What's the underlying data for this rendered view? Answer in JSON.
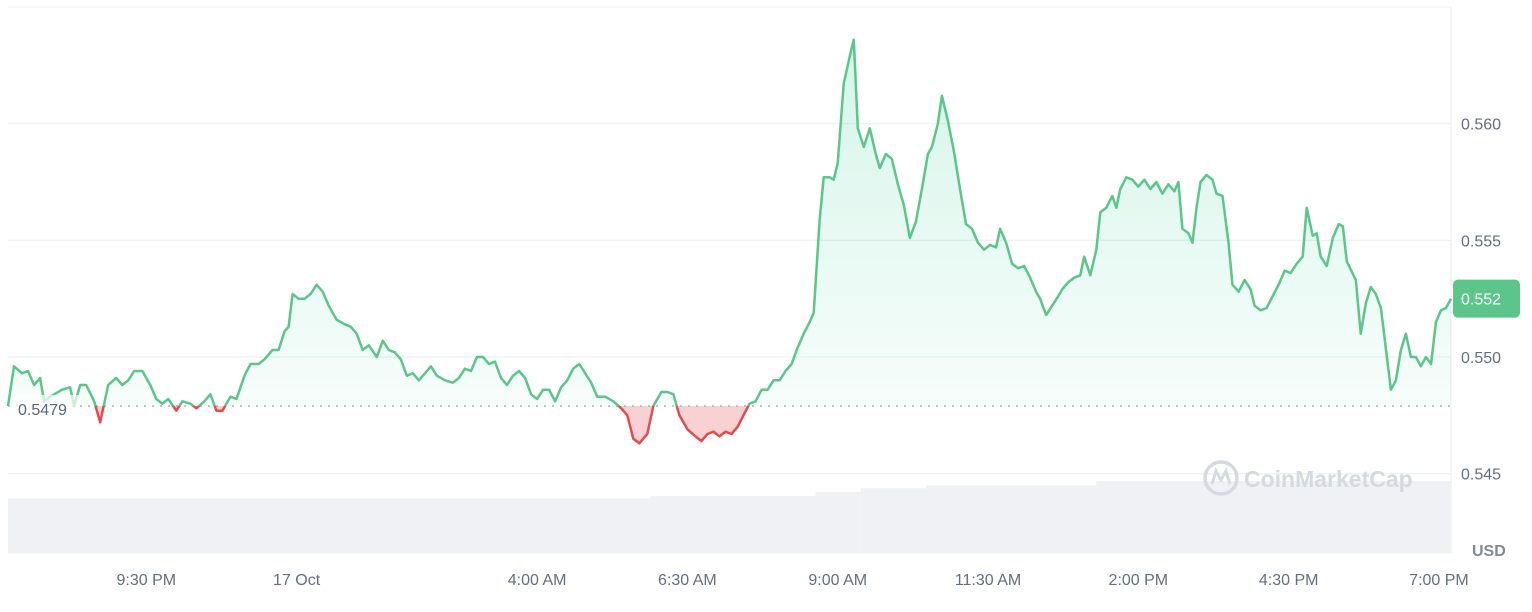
{
  "chart_data": {
    "type": "line",
    "quote_currency": "USD",
    "baseline": {
      "value": 0.5479,
      "label": "0.5479"
    },
    "current_price": {
      "value": 0.5525,
      "label": "0.552"
    },
    "watermark": "CoinMarketCap",
    "ylim": [
      0.5416,
      0.565
    ],
    "xlim": [
      "10-16T19:12",
      "10-17T19:12"
    ],
    "grid": true,
    "yticks": [
      {
        "value": 0.56,
        "label": "0.560"
      },
      {
        "value": 0.555,
        "label": "0.555"
      },
      {
        "value": 0.55,
        "label": "0.550"
      },
      {
        "value": 0.545,
        "label": "0.545"
      }
    ],
    "xticks": [
      {
        "t": "10-16T21:30",
        "label": "9:30 PM"
      },
      {
        "t": "10-17T00:00",
        "label": "17 Oct"
      },
      {
        "t": "10-17T04:00",
        "label": "4:00 AM"
      },
      {
        "t": "10-17T06:30",
        "label": "6:30 AM"
      },
      {
        "t": "10-17T09:00",
        "label": "9:00 AM"
      },
      {
        "t": "10-17T11:30",
        "label": "11:30 AM"
      },
      {
        "t": "10-17T14:00",
        "label": "2:00 PM"
      },
      {
        "t": "10-17T16:30",
        "label": "4:30 PM"
      },
      {
        "t": "10-17T19:00",
        "label": "7:00 PM"
      }
    ],
    "colors": {
      "up": "#16c784",
      "line_up": "#5bc58a",
      "down": "#e24c4c",
      "volume": "#eff1f5",
      "price_tag": "#5bc58a",
      "grid": "#eff2f5"
    },
    "volume_relative": [
      {
        "from": "10-16T19:12",
        "to": "10-17T05:53",
        "level": 0.76
      },
      {
        "from": "10-17T05:53",
        "to": "10-17T08:38",
        "level": 0.79
      },
      {
        "from": "10-17T08:38",
        "to": "10-17T09:23",
        "level": 0.85
      },
      {
        "from": "10-17T09:23",
        "to": "10-17T10:28",
        "level": 0.9
      },
      {
        "from": "10-17T10:28",
        "to": "10-17T13:18",
        "level": 0.94
      },
      {
        "from": "10-17T13:18",
        "to": "10-17T19:12",
        "level": 1.0
      }
    ],
    "points": [
      [
        "10-16T19:12",
        0.5479
      ],
      [
        "10-16T19:18",
        0.5496
      ],
      [
        "10-16T19:26",
        0.5493
      ],
      [
        "10-16T19:32",
        0.5494
      ],
      [
        "10-16T19:38",
        0.5488
      ],
      [
        "10-16T19:44",
        0.5491
      ],
      [
        "10-16T19:48",
        0.5481
      ],
      [
        "10-16T19:54",
        0.5483
      ],
      [
        "10-16T20:06",
        0.5486
      ],
      [
        "10-16T20:14",
        0.5487
      ],
      [
        "10-16T20:18",
        0.5479
      ],
      [
        "10-16T20:24",
        0.5488
      ],
      [
        "10-16T20:30",
        0.5488
      ],
      [
        "10-16T20:38",
        0.5481
      ],
      [
        "10-16T20:44",
        0.5472
      ],
      [
        "10-16T20:52",
        0.5488
      ],
      [
        "10-16T21:00",
        0.5491
      ],
      [
        "10-16T21:06",
        0.5488
      ],
      [
        "10-16T21:12",
        0.549
      ],
      [
        "10-16T21:18",
        0.5494
      ],
      [
        "10-16T21:26",
        0.5494
      ],
      [
        "10-16T21:34",
        0.5488
      ],
      [
        "10-16T21:40",
        0.5482
      ],
      [
        "10-16T21:46",
        0.548
      ],
      [
        "10-16T21:52",
        0.5482
      ],
      [
        "10-16T22:00",
        0.5477
      ],
      [
        "10-16T22:06",
        0.5481
      ],
      [
        "10-16T22:14",
        0.548
      ],
      [
        "10-16T22:20",
        0.5478
      ],
      [
        "10-16T22:28",
        0.5481
      ],
      [
        "10-16T22:34",
        0.5484
      ],
      [
        "10-16T22:40",
        0.5477
      ],
      [
        "10-16T22:46",
        0.5477
      ],
      [
        "10-16T22:54",
        0.5483
      ],
      [
        "10-16T23:00",
        0.5482
      ],
      [
        "10-16T23:08",
        0.5492
      ],
      [
        "10-16T23:14",
        0.5497
      ],
      [
        "10-16T23:22",
        0.5497
      ],
      [
        "10-16T23:28",
        0.5499
      ],
      [
        "10-16T23:36",
        0.5503
      ],
      [
        "10-16T23:42",
        0.5503
      ],
      [
        "10-16T23:48",
        0.5511
      ],
      [
        "10-16T23:52",
        0.5513
      ],
      [
        "10-16T23:56",
        0.5527
      ],
      [
        "10-17T00:02",
        0.5525
      ],
      [
        "10-17T00:08",
        0.5525
      ],
      [
        "10-17T00:14",
        0.5527
      ],
      [
        "10-17T00:20",
        0.5531
      ],
      [
        "10-17T00:26",
        0.5528
      ],
      [
        "10-17T00:32",
        0.5522
      ],
      [
        "10-17T00:40",
        0.5516
      ],
      [
        "10-17T00:48",
        0.5514
      ],
      [
        "10-17T00:54",
        0.5513
      ],
      [
        "10-17T01:00",
        0.551
      ],
      [
        "10-17T01:06",
        0.5503
      ],
      [
        "10-17T01:12",
        0.5505
      ],
      [
        "10-17T01:20",
        0.55
      ],
      [
        "10-17T01:26",
        0.5507
      ],
      [
        "10-17T01:32",
        0.5503
      ],
      [
        "10-17T01:38",
        0.5502
      ],
      [
        "10-17T01:44",
        0.5499
      ],
      [
        "10-17T01:50",
        0.5492
      ],
      [
        "10-17T01:56",
        0.5493
      ],
      [
        "10-17T02:02",
        0.549
      ],
      [
        "10-17T02:08",
        0.5493
      ],
      [
        "10-17T02:14",
        0.5496
      ],
      [
        "10-17T02:20",
        0.5492
      ],
      [
        "10-17T02:28",
        0.549
      ],
      [
        "10-17T02:36",
        0.5489
      ],
      [
        "10-17T02:42",
        0.5491
      ],
      [
        "10-17T02:48",
        0.5495
      ],
      [
        "10-17T02:54",
        0.5494
      ],
      [
        "10-17T03:00",
        0.55
      ],
      [
        "10-17T03:06",
        0.55
      ],
      [
        "10-17T03:12",
        0.5497
      ],
      [
        "10-17T03:18",
        0.5498
      ],
      [
        "10-17T03:24",
        0.5491
      ],
      [
        "10-17T03:30",
        0.5488
      ],
      [
        "10-17T03:36",
        0.5492
      ],
      [
        "10-17T03:42",
        0.5494
      ],
      [
        "10-17T03:48",
        0.5491
      ],
      [
        "10-17T03:54",
        0.5484
      ],
      [
        "10-17T04:00",
        0.5482
      ],
      [
        "10-17T04:06",
        0.5486
      ],
      [
        "10-17T04:12",
        0.5486
      ],
      [
        "10-17T04:18",
        0.5481
      ],
      [
        "10-17T04:24",
        0.5487
      ],
      [
        "10-17T04:30",
        0.549
      ],
      [
        "10-17T04:36",
        0.5495
      ],
      [
        "10-17T04:42",
        0.5497
      ],
      [
        "10-17T04:48",
        0.5493
      ],
      [
        "10-17T04:54",
        0.5489
      ],
      [
        "10-17T05:00",
        0.5483
      ],
      [
        "10-17T05:08",
        0.5483
      ],
      [
        "10-17T05:16",
        0.5481
      ],
      [
        "10-17T05:24",
        0.5478
      ],
      [
        "10-17T05:30",
        0.5475
      ],
      [
        "10-17T05:36",
        0.5465
      ],
      [
        "10-17T05:42",
        0.5463
      ],
      [
        "10-17T05:50",
        0.5467
      ],
      [
        "10-17T05:56",
        0.5479
      ],
      [
        "10-17T06:04",
        0.5485
      ],
      [
        "10-17T06:10",
        0.5485
      ],
      [
        "10-17T06:16",
        0.5484
      ],
      [
        "10-17T06:22",
        0.5475
      ],
      [
        "10-17T06:30",
        0.5469
      ],
      [
        "10-17T06:38",
        0.5466
      ],
      [
        "10-17T06:44",
        0.5464
      ],
      [
        "10-17T06:50",
        0.5467
      ],
      [
        "10-17T06:56",
        0.5468
      ],
      [
        "10-17T07:02",
        0.5466
      ],
      [
        "10-17T07:08",
        0.5468
      ],
      [
        "10-17T07:14",
        0.5467
      ],
      [
        "10-17T07:20",
        0.547
      ],
      [
        "10-17T07:26",
        0.5475
      ],
      [
        "10-17T07:32",
        0.548
      ],
      [
        "10-17T07:38",
        0.5481
      ],
      [
        "10-17T07:44",
        0.5486
      ],
      [
        "10-17T07:50",
        0.5486
      ],
      [
        "10-17T07:56",
        0.549
      ],
      [
        "10-17T08:02",
        0.549
      ],
      [
        "10-17T08:08",
        0.5494
      ],
      [
        "10-17T08:14",
        0.5497
      ],
      [
        "10-17T08:20",
        0.5504
      ],
      [
        "10-17T08:26",
        0.551
      ],
      [
        "10-17T08:32",
        0.5515
      ],
      [
        "10-17T08:36",
        0.5519
      ],
      [
        "10-17T08:42",
        0.5559
      ],
      [
        "10-17T08:46",
        0.5577
      ],
      [
        "10-17T08:52",
        0.5577
      ],
      [
        "10-17T08:56",
        0.5576
      ],
      [
        "10-17T09:00",
        0.5583
      ],
      [
        "10-17T09:06",
        0.5617
      ],
      [
        "10-17T09:12",
        0.5629
      ],
      [
        "10-17T09:16",
        0.5636
      ],
      [
        "10-17T09:20",
        0.5598
      ],
      [
        "10-17T09:26",
        0.559
      ],
      [
        "10-17T09:32",
        0.5598
      ],
      [
        "10-17T09:38",
        0.5587
      ],
      [
        "10-17T09:42",
        0.5581
      ],
      [
        "10-17T09:48",
        0.5587
      ],
      [
        "10-17T09:54",
        0.5585
      ],
      [
        "10-17T10:00",
        0.5574
      ],
      [
        "10-17T10:06",
        0.5565
      ],
      [
        "10-17T10:12",
        0.5551
      ],
      [
        "10-17T10:18",
        0.5558
      ],
      [
        "10-17T10:24",
        0.5572
      ],
      [
        "10-17T10:30",
        0.5587
      ],
      [
        "10-17T10:34",
        0.559
      ],
      [
        "10-17T10:40",
        0.56
      ],
      [
        "10-17T10:44",
        0.5612
      ],
      [
        "10-17T10:50",
        0.5601
      ],
      [
        "10-17T10:56",
        0.5588
      ],
      [
        "10-17T11:02",
        0.5572
      ],
      [
        "10-17T11:08",
        0.5557
      ],
      [
        "10-17T11:14",
        0.5555
      ],
      [
        "10-17T11:20",
        0.5549
      ],
      [
        "10-17T11:26",
        0.5546
      ],
      [
        "10-17T11:32",
        0.5548
      ],
      [
        "10-17T11:38",
        0.5547
      ],
      [
        "10-17T11:42",
        0.5555
      ],
      [
        "10-17T11:48",
        0.5549
      ],
      [
        "10-17T11:54",
        0.554
      ],
      [
        "10-17T12:00",
        0.5538
      ],
      [
        "10-17T12:06",
        0.5539
      ],
      [
        "10-17T12:12",
        0.5534
      ],
      [
        "10-17T12:18",
        0.5528
      ],
      [
        "10-17T12:22",
        0.5525
      ],
      [
        "10-17T12:28",
        0.5518
      ],
      [
        "10-17T12:34",
        0.5522
      ],
      [
        "10-17T12:40",
        0.5526
      ],
      [
        "10-17T12:44",
        0.5529
      ],
      [
        "10-17T12:50",
        0.5532
      ],
      [
        "10-17T12:56",
        0.5534
      ],
      [
        "10-17T13:02",
        0.5535
      ],
      [
        "10-17T13:06",
        0.5543
      ],
      [
        "10-17T13:12",
        0.5535
      ],
      [
        "10-17T13:18",
        0.5546
      ],
      [
        "10-17T13:22",
        0.5562
      ],
      [
        "10-17T13:28",
        0.5564
      ],
      [
        "10-17T13:34",
        0.5569
      ],
      [
        "10-17T13:38",
        0.5564
      ],
      [
        "10-17T13:42",
        0.5572
      ],
      [
        "10-17T13:48",
        0.5577
      ],
      [
        "10-17T13:54",
        0.5576
      ],
      [
        "10-17T14:00",
        0.5573
      ],
      [
        "10-17T14:06",
        0.5576
      ],
      [
        "10-17T14:12",
        0.5572
      ],
      [
        "10-17T14:18",
        0.5575
      ],
      [
        "10-17T14:24",
        0.557
      ],
      [
        "10-17T14:30",
        0.5574
      ],
      [
        "10-17T14:36",
        0.5571
      ],
      [
        "10-17T14:40",
        0.5575
      ],
      [
        "10-17T14:44",
        0.5555
      ],
      [
        "10-17T14:50",
        0.5553
      ],
      [
        "10-17T14:54",
        0.5549
      ],
      [
        "10-17T14:58",
        0.5564
      ],
      [
        "10-17T15:02",
        0.5575
      ],
      [
        "10-17T15:08",
        0.5578
      ],
      [
        "10-17T15:14",
        0.5576
      ],
      [
        "10-17T15:18",
        0.557
      ],
      [
        "10-17T15:24",
        0.5569
      ],
      [
        "10-17T15:30",
        0.5549
      ],
      [
        "10-17T15:34",
        0.5531
      ],
      [
        "10-17T15:40",
        0.5528
      ],
      [
        "10-17T15:46",
        0.5533
      ],
      [
        "10-17T15:52",
        0.5529
      ],
      [
        "10-17T15:56",
        0.5522
      ],
      [
        "10-17T16:02",
        0.552
      ],
      [
        "10-17T16:08",
        0.5521
      ],
      [
        "10-17T16:14",
        0.5526
      ],
      [
        "10-17T16:20",
        0.5531
      ],
      [
        "10-17T16:26",
        0.5537
      ],
      [
        "10-17T16:32",
        0.5536
      ],
      [
        "10-17T16:38",
        0.554
      ],
      [
        "10-17T16:44",
        0.5543
      ],
      [
        "10-17T16:48",
        0.5564
      ],
      [
        "10-17T16:54",
        0.5552
      ],
      [
        "10-17T16:58",
        0.5553
      ],
      [
        "10-17T17:02",
        0.5543
      ],
      [
        "10-17T17:08",
        0.5539
      ],
      [
        "10-17T17:14",
        0.5551
      ],
      [
        "10-17T17:20",
        0.5557
      ],
      [
        "10-17T17:24",
        0.5556
      ],
      [
        "10-17T17:28",
        0.5541
      ],
      [
        "10-17T17:37",
        0.5533
      ],
      [
        "10-17T17:42",
        0.551
      ],
      [
        "10-17T17:47",
        0.5523
      ],
      [
        "10-17T17:52",
        0.553
      ],
      [
        "10-17T17:57",
        0.5527
      ],
      [
        "10-17T18:02",
        0.5521
      ],
      [
        "10-17T18:12",
        0.5486
      ],
      [
        "10-17T18:17",
        0.549
      ],
      [
        "10-17T18:22",
        0.5503
      ],
      [
        "10-17T18:27",
        0.551
      ],
      [
        "10-17T18:32",
        0.55
      ],
      [
        "10-17T18:37",
        0.55
      ],
      [
        "10-17T18:42",
        0.5496
      ],
      [
        "10-17T18:47",
        0.55
      ],
      [
        "10-17T18:52",
        0.5497
      ],
      [
        "10-17T18:57",
        0.5515
      ],
      [
        "10-17T19:02",
        0.552
      ],
      [
        "10-17T19:07",
        0.5521
      ],
      [
        "10-17T19:12",
        0.5525
      ]
    ]
  }
}
